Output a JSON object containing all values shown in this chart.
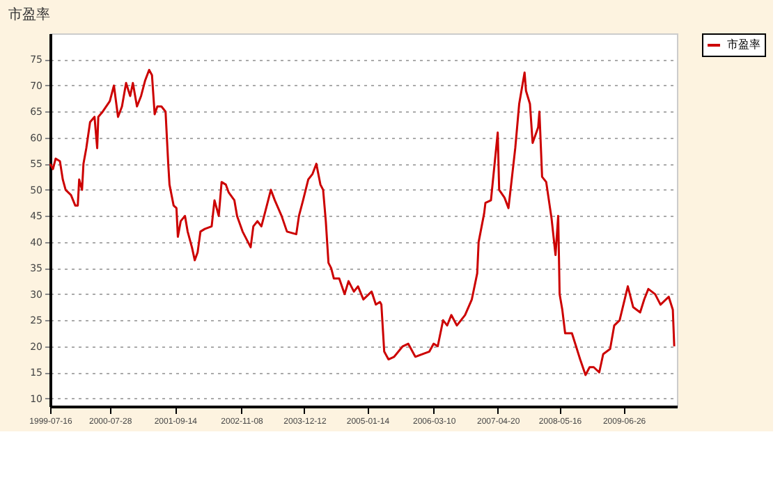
{
  "chart_data": {
    "type": "line",
    "title": "市盈率",
    "x": [
      "1999-07-16",
      "1999-08-03",
      "1999-08-20",
      "1999-09-16",
      "1999-10-04",
      "1999-10-22",
      "1999-11-25",
      "1999-12-22",
      "2000-01-07",
      "2000-01-16",
      "2000-02-03",
      "2000-02-12",
      "2000-03-01",
      "2000-03-25",
      "2000-04-22",
      "2000-05-09",
      "2000-05-16",
      "2000-06-13",
      "2000-07-28",
      "2000-08-23",
      "2000-09-18",
      "2000-10-13",
      "2000-11-08",
      "2000-12-04",
      "2000-12-21",
      "2001-01-16",
      "2001-02-11",
      "2001-03-09",
      "2001-04-03",
      "2001-04-21",
      "2001-05-08",
      "2001-05-25",
      "2001-06-20",
      "2001-07-16",
      "2001-08-02",
      "2001-08-10",
      "2001-09-05",
      "2001-09-23",
      "2001-10-02",
      "2001-10-20",
      "2001-11-16",
      "2001-12-03",
      "2001-12-30",
      "2002-01-17",
      "2002-02-04",
      "2002-02-22",
      "2002-03-21",
      "2002-05-04",
      "2002-05-22",
      "2002-06-18",
      "2002-07-06",
      "2002-08-02",
      "2002-08-20",
      "2002-09-25",
      "2002-10-12",
      "2002-11-16",
      "2002-12-03",
      "2003-01-06",
      "2003-01-23",
      "2003-02-18",
      "2003-03-15",
      "2003-04-10",
      "2003-04-27",
      "2003-05-14",
      "2003-06-08",
      "2003-07-21",
      "2003-08-24",
      "2003-10-22",
      "2003-11-08",
      "2003-12-04",
      "2004-01-06",
      "2004-02-01",
      "2004-02-26",
      "2004-03-23",
      "2004-04-09",
      "2004-04-26",
      "2004-05-13",
      "2004-05-30",
      "2004-06-16",
      "2004-07-20",
      "2004-08-06",
      "2004-08-23",
      "2004-09-17",
      "2004-10-21",
      "2004-11-16",
      "2004-12-20",
      "2005-02-10",
      "2005-03-09",
      "2005-04-04",
      "2005-04-13",
      "2005-05-01",
      "2005-05-28",
      "2005-07-03",
      "2005-08-26",
      "2005-09-30",
      "2005-11-14",
      "2006-02-11",
      "2006-03-10",
      "2006-04-05",
      "2006-05-09",
      "2006-06-04",
      "2006-06-30",
      "2006-08-04",
      "2006-09-25",
      "2006-11-07",
      "2006-12-11",
      "2006-12-20",
      "2007-01-24",
      "2007-02-01",
      "2007-03-08",
      "2007-04-20",
      "2007-04-29",
      "2007-06-02",
      "2007-06-27",
      "2007-08-09",
      "2007-09-03",
      "2007-10-07",
      "2007-10-16",
      "2007-11-10",
      "2007-11-27",
      "2008-01-01",
      "2008-01-09",
      "2008-01-26",
      "2008-02-21",
      "2008-03-26",
      "2008-04-20",
      "2008-05-07",
      "2008-05-16",
      "2008-06-02",
      "2008-06-20",
      "2008-08-02",
      "2008-08-28",
      "2008-09-23",
      "2008-10-27",
      "2008-11-22",
      "2008-12-18",
      "2009-01-22",
      "2009-02-16",
      "2009-04-01",
      "2009-04-27",
      "2009-05-31",
      "2009-07-22",
      "2009-08-25",
      "2009-10-08",
      "2009-11-03",
      "2009-11-29",
      "2010-01-11",
      "2010-02-14",
      "2010-04-07",
      "2010-05-03",
      "2010-05-12"
    ],
    "series": [
      {
        "name": "市盈率",
        "color": "#cc0000",
        "values": [
          55,
          54,
          56,
          55.5,
          52,
          50,
          49,
          47,
          47,
          52,
          50,
          55,
          58,
          63,
          64,
          58,
          64,
          65,
          67,
          70,
          64,
          66,
          70.5,
          68,
          70.5,
          66,
          68,
          71,
          73,
          72,
          64.5,
          66,
          66,
          65,
          55,
          51,
          47,
          46.5,
          41,
          44,
          45,
          42,
          39,
          36.5,
          38,
          42,
          42.5,
          43,
          48,
          45,
          51.5,
          51,
          49.5,
          48,
          45,
          42,
          41,
          39,
          43,
          44,
          43,
          46,
          48,
          50,
          48,
          45,
          42,
          41.5,
          45,
          48,
          52,
          53,
          55,
          51,
          50,
          44,
          36,
          35,
          33,
          33,
          31.5,
          30,
          32.5,
          30.5,
          31.5,
          29,
          30.5,
          28,
          28.5,
          28,
          19,
          17.5,
          18,
          20,
          20.5,
          18,
          19,
          20.5,
          20,
          25,
          24,
          26,
          24,
          26,
          29,
          34,
          40,
          45.5,
          47.5,
          48,
          61,
          50,
          48.5,
          46.5,
          58,
          66.5,
          72.5,
          69,
          66.5,
          59,
          62,
          65,
          52.5,
          51.5,
          44.5,
          37.5,
          45,
          30,
          27,
          22.5,
          22.5,
          20,
          17.5,
          14.5,
          16,
          16,
          15,
          18.5,
          19.5,
          24,
          25,
          31.5,
          27.5,
          26.5,
          29,
          31,
          30,
          28,
          29.5,
          27,
          20
        ]
      }
    ],
    "xlim": [
      "1999-07-16",
      "2010-05-29"
    ],
    "xticks": [
      "1999-07-16",
      "2000-07-28",
      "2001-09-14",
      "2002-11-08",
      "2003-12-12",
      "2005-01-14",
      "2006-03-10",
      "2007-04-20",
      "2008-05-16",
      "2009-06-26"
    ],
    "ylim": [
      8.5,
      80
    ],
    "yticks": [
      10,
      15,
      20,
      25,
      30,
      35,
      40,
      45,
      50,
      55,
      60,
      65,
      70,
      75
    ],
    "grid": "y",
    "legend": "top right",
    "line_style": "solid",
    "marker": "none"
  }
}
